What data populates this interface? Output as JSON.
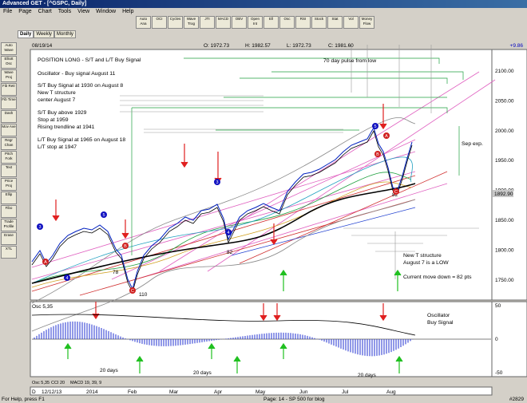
{
  "window": {
    "title": "Advanced GET - [^GSPC, Daily]"
  },
  "menu": [
    "File",
    "Page",
    "Chart",
    "Tools",
    "View",
    "Window",
    "Help"
  ],
  "toolbar": [
    "Auto Ana",
    "OCI",
    "Cycles",
    "Wave Trog",
    "JTI",
    "MACD",
    "OBV",
    "Open Int",
    "Ell",
    "Osc",
    "RSI",
    "Stock",
    "Stat",
    "Vol",
    "Money Flow"
  ],
  "tabs": [
    "Daily",
    "Weekly",
    "Monthly"
  ],
  "sidebar": [
    "Auto Wave",
    "Elliott Osc",
    "Wave Proj",
    "Fib Retr",
    "Fib Time",
    "Dash",
    "Mov Ave",
    "Regr Chan",
    "Pitch Fork",
    "Text",
    "Price Proj",
    "Ellip",
    "Fibo",
    "Trade Profile",
    "Erase",
    "XTL"
  ],
  "header": {
    "date": "08/19/14",
    "ohlc": [
      "O: 1972.73",
      "H: 1982.57",
      "L: 1972.73",
      "C: 1981.60"
    ],
    "change": "+9.86"
  },
  "price_axis": [
    "2100.00",
    "2050.00",
    "2000.00",
    "1950.00",
    "1900.00",
    "1850.00",
    "1800.00",
    "1750.00"
  ],
  "last_price": "1892.90",
  "annotations": [
    "POSITION LONG - S/T and L/T Buy Signal",
    "Oscillator - Buy signal August 11",
    "S/T Buy Signal at 1930 on August 8",
    "New T structure",
    "center August 7",
    "S/T Buy above 1929",
    "Stop at 1959",
    "Rising trendline at 1941",
    "L/T Buy Signal at 1965 on August 18",
    "L/T stop at 1947",
    "70 day pulse from low",
    "Sep exp.",
    "New T structure",
    "August 7 is a LOW",
    "Current move down = 82 pts"
  ],
  "wave_labels": [
    "78",
    "110",
    "82",
    "82"
  ],
  "wave_counts": [
    "3",
    "A",
    "4",
    "5",
    "B",
    "C",
    "3",
    "4",
    "5",
    "B",
    "C",
    "A"
  ],
  "oscillator": {
    "title": "Osc 5,35",
    "notes": [
      "Oscillator",
      "Buy Signal"
    ],
    "periods": [
      "20 days",
      "20 days",
      "20 days"
    ],
    "axis": [
      "50",
      "0",
      "-50"
    ]
  },
  "bottom_tabs": [
    "Osc 5,35",
    "CCI 20",
    "MACD 19, 39, 9"
  ],
  "date_axis": [
    "D",
    "12/12/13",
    "2014",
    "Feb",
    "Mar",
    "Apr",
    "May",
    "Jun",
    "Jul",
    "Aug"
  ],
  "status": [
    "For Help, press F1",
    "Page: 14 - SP 500 for blog",
    "#2829"
  ]
}
